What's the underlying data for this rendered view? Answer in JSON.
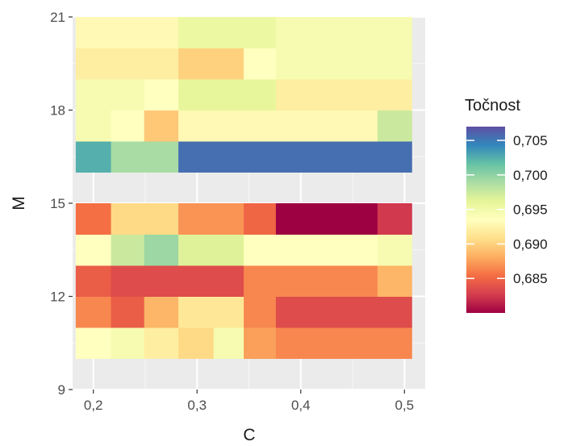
{
  "chart_data": {
    "type": "heatmap",
    "xlabel": "C",
    "ylabel": "M",
    "x_ticks": [
      0.2,
      0.3,
      0.4,
      0.5
    ],
    "x_tick_labels": [
      "0,2",
      "0,3",
      "0,4",
      "0,5"
    ],
    "y_ticks": [
      9,
      12,
      15,
      18,
      21
    ],
    "y_tick_labels": [
      "9",
      "12",
      "15",
      "18",
      "21"
    ],
    "xlim": [
      0.18,
      0.52
    ],
    "ylim": [
      9,
      21
    ],
    "grid": true,
    "legend": {
      "title": "Točnost",
      "position": "right",
      "min": 0.68,
      "max": 0.707,
      "ticks": [
        0.705,
        0.7,
        0.695,
        0.69,
        0.685
      ],
      "tick_labels": [
        "0,705",
        "0,700",
        "0,695",
        "0,690",
        "0,685"
      ],
      "palette": "Spectral"
    },
    "rows": [
      {
        "y": [
          10,
          11
        ],
        "cells": [
          {
            "x": [
              0.183,
              0.217
            ],
            "v": 0.6935
          },
          {
            "x": [
              0.217,
              0.249
            ],
            "v": 0.6945
          },
          {
            "x": [
              0.249,
              0.265
            ],
            "v": 0.692
          },
          {
            "x": [
              0.265,
              0.282
            ],
            "v": 0.692
          },
          {
            "x": [
              0.282,
              0.316
            ],
            "v": 0.6905
          },
          {
            "x": [
              0.316,
              0.345
            ],
            "v": 0.6945
          },
          {
            "x": [
              0.345,
              0.376
            ],
            "v": 0.6875
          },
          {
            "x": [
              0.376,
              0.507
            ],
            "v": 0.6865
          }
        ]
      },
      {
        "y": [
          11,
          12
        ],
        "cells": [
          {
            "x": [
              0.183,
              0.217
            ],
            "v": 0.6865
          },
          {
            "x": [
              0.217,
              0.249
            ],
            "v": 0.6845
          },
          {
            "x": [
              0.249,
              0.282
            ],
            "v": 0.6885
          },
          {
            "x": [
              0.282,
              0.345
            ],
            "v": 0.6915
          },
          {
            "x": [
              0.345,
              0.376
            ],
            "v": 0.6865
          },
          {
            "x": [
              0.376,
              0.507
            ],
            "v": 0.6835
          }
        ]
      },
      {
        "y": [
          12,
          13
        ],
        "cells": [
          {
            "x": [
              0.183,
              0.217
            ],
            "v": 0.6845
          },
          {
            "x": [
              0.217,
              0.345
            ],
            "v": 0.6835
          },
          {
            "x": [
              0.345,
              0.474
            ],
            "v": 0.6865
          },
          {
            "x": [
              0.474,
              0.507
            ],
            "v": 0.6885
          }
        ]
      },
      {
        "y": [
          13,
          14
        ],
        "cells": [
          {
            "x": [
              0.183,
              0.217
            ],
            "v": 0.6935
          },
          {
            "x": [
              0.217,
              0.249
            ],
            "v": 0.6975
          },
          {
            "x": [
              0.249,
              0.282
            ],
            "v": 0.6995
          },
          {
            "x": [
              0.282,
              0.345
            ],
            "v": 0.6965
          },
          {
            "x": [
              0.345,
              0.474
            ],
            "v": 0.6935
          },
          {
            "x": [
              0.474,
              0.507
            ],
            "v": 0.6945
          }
        ]
      },
      {
        "y": [
          14,
          15
        ],
        "cells": [
          {
            "x": [
              0.183,
              0.217
            ],
            "v": 0.6855
          },
          {
            "x": [
              0.217,
              0.282
            ],
            "v": 0.6905
          },
          {
            "x": [
              0.282,
              0.345
            ],
            "v": 0.687
          },
          {
            "x": [
              0.345,
              0.376
            ],
            "v": 0.685
          },
          {
            "x": [
              0.376,
              0.474
            ],
            "v": 0.68
          },
          {
            "x": [
              0.474,
              0.507
            ],
            "v": 0.6825
          }
        ]
      },
      {
        "y": [
          16,
          17
        ],
        "cells": [
          {
            "x": [
              0.183,
              0.217
            ],
            "v": 0.7025
          },
          {
            "x": [
              0.217,
              0.282
            ],
            "v": 0.699
          },
          {
            "x": [
              0.282,
              0.507
            ],
            "v": 0.7055
          }
        ]
      },
      {
        "y": [
          17,
          18
        ],
        "cells": [
          {
            "x": [
              0.183,
              0.217
            ],
            "v": 0.6945
          },
          {
            "x": [
              0.217,
              0.249
            ],
            "v": 0.6935
          },
          {
            "x": [
              0.249,
              0.282
            ],
            "v": 0.6895
          },
          {
            "x": [
              0.282,
              0.474
            ],
            "v": 0.693
          },
          {
            "x": [
              0.474,
              0.507
            ],
            "v": 0.6975
          }
        ]
      },
      {
        "y": [
          18,
          19
        ],
        "cells": [
          {
            "x": [
              0.183,
              0.249
            ],
            "v": 0.6945
          },
          {
            "x": [
              0.249,
              0.282
            ],
            "v": 0.6935
          },
          {
            "x": [
              0.282,
              0.376
            ],
            "v": 0.696
          },
          {
            "x": [
              0.376,
              0.507
            ],
            "v": 0.692
          }
        ]
      },
      {
        "y": [
          19,
          20
        ],
        "cells": [
          {
            "x": [
              0.183,
              0.282
            ],
            "v": 0.692
          },
          {
            "x": [
              0.282,
              0.345
            ],
            "v": 0.69
          },
          {
            "x": [
              0.345,
              0.376
            ],
            "v": 0.6935
          },
          {
            "x": [
              0.376,
              0.507
            ],
            "v": 0.6945
          }
        ]
      },
      {
        "y": [
          20,
          21
        ],
        "cells": [
          {
            "x": [
              0.183,
              0.282
            ],
            "v": 0.693
          },
          {
            "x": [
              0.282,
              0.376
            ],
            "v": 0.6955
          },
          {
            "x": [
              0.376,
              0.507
            ],
            "v": 0.6945
          }
        ]
      }
    ]
  }
}
